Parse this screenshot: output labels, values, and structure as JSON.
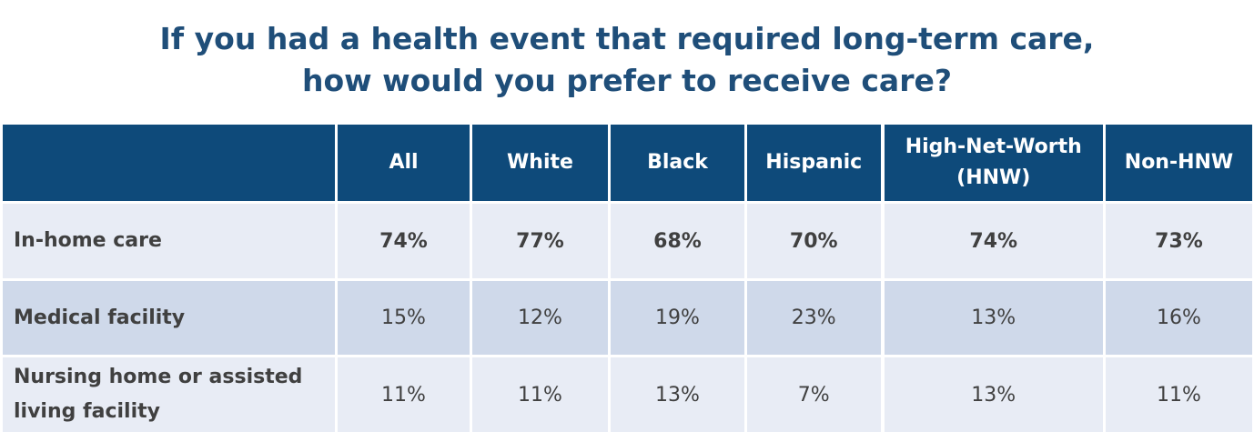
{
  "chart_data": {
    "type": "table",
    "title": "If you had a health event that required long-term care, how would you prefer to receive care?",
    "title_lines": [
      "If you had a health event that required long-term care,",
      "how would you prefer to receive care?"
    ],
    "columns": [
      "",
      "All",
      "White",
      "Black",
      "Hispanic",
      "High-Net-Worth (HNW)",
      "Non-HNW"
    ],
    "column_header_lines": [
      [
        ""
      ],
      [
        "All"
      ],
      [
        "White"
      ],
      [
        "Black"
      ],
      [
        "Hispanic"
      ],
      [
        "High-Net-Worth",
        "(HNW)"
      ],
      [
        "Non-HNW"
      ]
    ],
    "rows": [
      {
        "label": "In-home care",
        "label_lines": [
          "In-home care"
        ],
        "values": [
          "74%",
          "77%",
          "68%",
          "70%",
          "74%",
          "73%"
        ],
        "bold": true
      },
      {
        "label": "Medical facility",
        "label_lines": [
          "Medical facility"
        ],
        "values": [
          "15%",
          "12%",
          "19%",
          "23%",
          "13%",
          "16%"
        ],
        "bold": false
      },
      {
        "label": "Nursing home or assisted living facility",
        "label_lines": [
          "Nursing home or assisted",
          "living facility"
        ],
        "values": [
          "11%",
          "11%",
          "13%",
          "7%",
          "13%",
          "11%"
        ],
        "bold": false
      }
    ],
    "colors": {
      "title": "#1F4E79",
      "header_bg": "#0E4A7A",
      "header_text": "#FFFFFF",
      "row_light": "#E8ECF5",
      "row_dark": "#CFD9EA",
      "cell_text": "#404040"
    }
  }
}
